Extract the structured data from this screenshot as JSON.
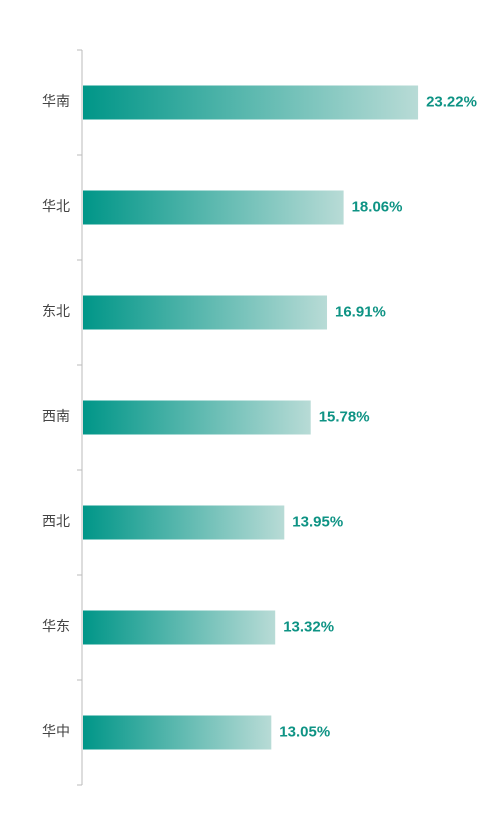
{
  "chart_data": {
    "type": "bar",
    "orientation": "horizontal",
    "categories": [
      "华南",
      "华北",
      "东北",
      "西南",
      "西北",
      "华东",
      "华中"
    ],
    "values": [
      23.22,
      18.06,
      16.91,
      15.78,
      13.95,
      13.32,
      13.05
    ],
    "value_labels": [
      "23.22%",
      "18.06%",
      "16.91%",
      "15.78%",
      "13.95%",
      "13.32%",
      "13.05%"
    ],
    "color": "#009688",
    "label_color": "#0e9384"
  }
}
